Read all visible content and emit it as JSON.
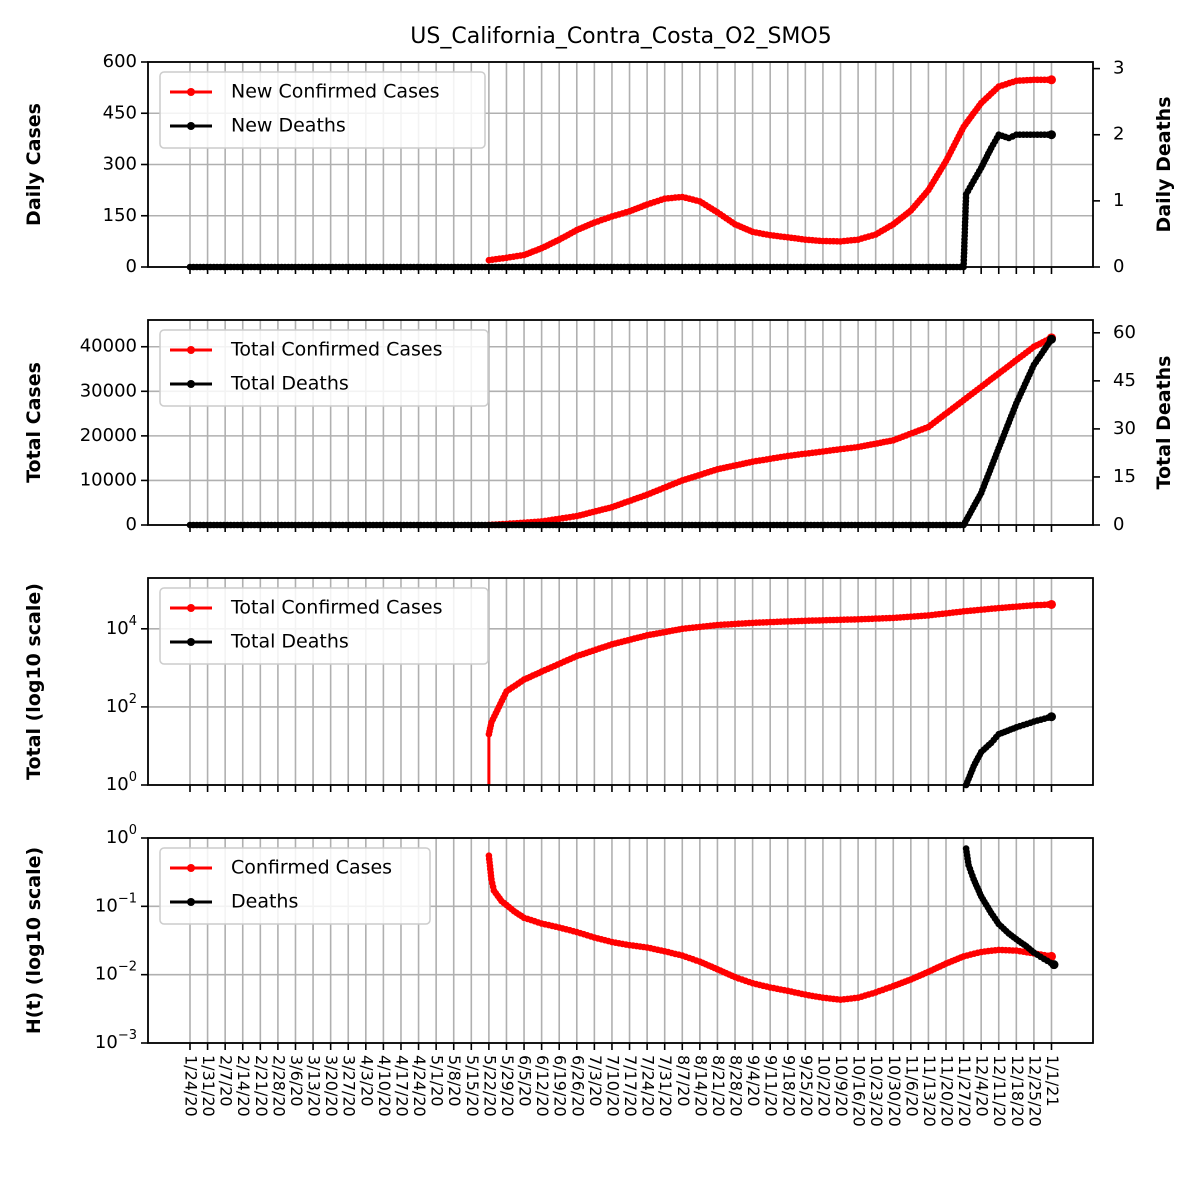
{
  "colors": {
    "confirmed": "#ff0000",
    "deaths": "#000000",
    "grid": "#b0b0b0"
  },
  "chart_data": [
    {
      "type": "line",
      "title": "US_California_Contra_Costa_O2_SMO5",
      "ylabel": "Daily Cases",
      "y2label": "Daily Deaths",
      "ylim": [
        0,
        600
      ],
      "y2lim": [
        0,
        3.1
      ],
      "yticks": [
        "0",
        "150",
        "300",
        "450",
        "600"
      ],
      "y2ticks": [
        "0",
        "1",
        "2",
        "3"
      ],
      "legend": {
        "placement": "upper-left",
        "entries": [
          "New Confirmed Cases",
          "New Deaths"
        ]
      },
      "series": [
        {
          "name": "New Confirmed Cases",
          "axis": "left",
          "color": "#ff0000",
          "points": [
            [
              "5/22/20",
              20
            ],
            [
              "5/29/20",
              27
            ],
            [
              "6/5/20",
              35
            ],
            [
              "6/12/20",
              55
            ],
            [
              "6/19/20",
              80
            ],
            [
              "6/26/20",
              108
            ],
            [
              "7/3/20",
              130
            ],
            [
              "7/10/20",
              148
            ],
            [
              "7/17/20",
              163
            ],
            [
              "7/24/20",
              183
            ],
            [
              "7/31/20",
              200
            ],
            [
              "8/7/20",
              205
            ],
            [
              "8/14/20",
              192
            ],
            [
              "8/21/20",
              160
            ],
            [
              "8/28/20",
              125
            ],
            [
              "9/4/20",
              103
            ],
            [
              "9/11/20",
              93
            ],
            [
              "9/18/20",
              87
            ],
            [
              "9/25/20",
              80
            ],
            [
              "10/2/20",
              76
            ],
            [
              "10/9/20",
              75
            ],
            [
              "10/16/20",
              80
            ],
            [
              "10/23/20",
              95
            ],
            [
              "10/30/20",
              125
            ],
            [
              "11/6/20",
              165
            ],
            [
              "11/13/20",
              225
            ],
            [
              "11/20/20",
              310
            ],
            [
              "11/27/20",
              410
            ],
            [
              "12/4/20",
              480
            ],
            [
              "12/11/20",
              528
            ],
            [
              "12/18/20",
              545
            ],
            [
              "12/25/20",
              548
            ],
            [
              "1/1/21",
              548
            ]
          ]
        },
        {
          "name": "New Deaths",
          "axis": "right",
          "color": "#000000",
          "points": [
            [
              "1/24/20",
              0
            ],
            [
              "11/27/20",
              0
            ],
            [
              "11/28/20",
              1.1
            ],
            [
              "12/1/20",
              1.3
            ],
            [
              "12/4/20",
              1.5
            ],
            [
              "12/8/20",
              1.8
            ],
            [
              "12/11/20",
              2.0
            ],
            [
              "12/15/20",
              1.95
            ],
            [
              "12/18/20",
              2.0
            ],
            [
              "1/1/21",
              2.0
            ]
          ]
        }
      ]
    },
    {
      "type": "line",
      "ylabel": "Total Cases",
      "y2label": "Total Deaths",
      "ylim": [
        0,
        46000
      ],
      "y2lim": [
        0,
        64
      ],
      "yticks": [
        "0",
        "10000",
        "20000",
        "30000",
        "40000"
      ],
      "y2ticks": [
        "0",
        "15",
        "30",
        "45",
        "60"
      ],
      "legend": {
        "placement": "upper-left",
        "entries": [
          "Total Confirmed Cases",
          "Total Deaths"
        ]
      },
      "series": [
        {
          "name": "Total Confirmed Cases",
          "axis": "left",
          "color": "#ff0000",
          "points": [
            [
              "5/22/20",
              20
            ],
            [
              "5/29/20",
              250
            ],
            [
              "6/12/20",
              800
            ],
            [
              "6/26/20",
              2000
            ],
            [
              "7/10/20",
              4000
            ],
            [
              "7/24/20",
              6800
            ],
            [
              "8/7/20",
              10000
            ],
            [
              "8/21/20",
              12500
            ],
            [
              "9/4/20",
              14200
            ],
            [
              "9/18/20",
              15500
            ],
            [
              "10/2/20",
              16500
            ],
            [
              "10/16/20",
              17500
            ],
            [
              "10/30/20",
              19000
            ],
            [
              "11/13/20",
              22000
            ],
            [
              "11/27/20",
              28000
            ],
            [
              "12/11/20",
              34000
            ],
            [
              "12/25/20",
              40000
            ],
            [
              "1/1/21",
              42000
            ]
          ]
        },
        {
          "name": "Total Deaths",
          "axis": "right",
          "color": "#000000",
          "points": [
            [
              "1/24/20",
              0
            ],
            [
              "11/27/20",
              0
            ],
            [
              "12/4/20",
              10
            ],
            [
              "12/11/20",
              24
            ],
            [
              "12/18/20",
              38
            ],
            [
              "12/25/20",
              50
            ],
            [
              "1/1/21",
              58
            ]
          ]
        }
      ]
    },
    {
      "type": "line",
      "ylabel": "Total (log10 scale)",
      "yscale": "log",
      "ylim": [
        1,
        200000
      ],
      "yticks": [
        "10^0",
        "10^2",
        "10^4"
      ],
      "legend": {
        "placement": "upper-left",
        "entries": [
          "Total Confirmed Cases",
          "Total Deaths"
        ]
      },
      "series": [
        {
          "name": "Total Confirmed Cases",
          "color": "#ff0000",
          "points": [
            [
              "5/22/20",
              20
            ],
            [
              "5/23/20",
              40
            ],
            [
              "5/29/20",
              250
            ],
            [
              "6/5/20",
              500
            ],
            [
              "6/12/20",
              800
            ],
            [
              "6/26/20",
              2000
            ],
            [
              "7/10/20",
              4000
            ],
            [
              "7/24/20",
              6800
            ],
            [
              "8/7/20",
              10000
            ],
            [
              "8/21/20",
              12500
            ],
            [
              "9/4/20",
              14200
            ],
            [
              "9/18/20",
              15500
            ],
            [
              "10/2/20",
              16500
            ],
            [
              "10/16/20",
              17500
            ],
            [
              "10/30/20",
              19000
            ],
            [
              "11/13/20",
              22000
            ],
            [
              "11/27/20",
              28000
            ],
            [
              "12/11/20",
              34000
            ],
            [
              "12/25/20",
              40000
            ],
            [
              "1/1/21",
              42000
            ]
          ]
        },
        {
          "name": "Total Deaths",
          "color": "#000000",
          "points": [
            [
              "11/28/20",
              1
            ],
            [
              "12/1/20",
              3
            ],
            [
              "12/4/20",
              7
            ],
            [
              "12/8/20",
              12
            ],
            [
              "12/11/20",
              20
            ],
            [
              "12/18/20",
              30
            ],
            [
              "12/25/20",
              42
            ],
            [
              "1/1/21",
              56
            ]
          ]
        }
      ]
    },
    {
      "type": "line",
      "ylabel": "H(t) (log10 scale)",
      "yscale": "log",
      "ylim": [
        0.001,
        1
      ],
      "yticks": [
        "10^-3",
        "10^-2",
        "10^-1",
        "10^0"
      ],
      "legend": {
        "placement": "upper-left",
        "entries": [
          "Confirmed Cases",
          "Deaths"
        ]
      },
      "series": [
        {
          "name": "Confirmed Cases",
          "color": "#ff0000",
          "points": [
            [
              "5/22/20",
              0.55
            ],
            [
              "5/23/20",
              0.25
            ],
            [
              "5/24/20",
              0.17
            ],
            [
              "5/27/20",
              0.12
            ],
            [
              "6/1/20",
              0.085
            ],
            [
              "6/5/20",
              0.068
            ],
            [
              "6/12/20",
              0.056
            ],
            [
              "6/19/20",
              0.049
            ],
            [
              "6/26/20",
              0.042
            ],
            [
              "7/3/20",
              0.035
            ],
            [
              "7/10/20",
              0.03
            ],
            [
              "7/17/20",
              0.027
            ],
            [
              "7/24/20",
              0.025
            ],
            [
              "7/31/20",
              0.022
            ],
            [
              "8/7/20",
              0.019
            ],
            [
              "8/14/20",
              0.0155
            ],
            [
              "8/21/20",
              0.012
            ],
            [
              "8/28/20",
              0.0092
            ],
            [
              "9/4/20",
              0.0075
            ],
            [
              "9/11/20",
              0.0065
            ],
            [
              "9/18/20",
              0.0058
            ],
            [
              "9/25/20",
              0.0051
            ],
            [
              "10/2/20",
              0.0046
            ],
            [
              "10/9/20",
              0.0043
            ],
            [
              "10/16/20",
              0.0046
            ],
            [
              "10/23/20",
              0.0055
            ],
            [
              "10/30/20",
              0.0068
            ],
            [
              "11/6/20",
              0.0085
            ],
            [
              "11/13/20",
              0.011
            ],
            [
              "11/20/20",
              0.0145
            ],
            [
              "11/27/20",
              0.0185
            ],
            [
              "12/4/20",
              0.0215
            ],
            [
              "12/11/20",
              0.023
            ],
            [
              "12/18/20",
              0.0225
            ],
            [
              "12/25/20",
              0.0205
            ],
            [
              "1/1/21",
              0.0185
            ]
          ]
        },
        {
          "name": "Deaths",
          "color": "#000000",
          "points": [
            [
              "11/28/20",
              0.7
            ],
            [
              "11/29/20",
              0.4
            ],
            [
              "12/1/20",
              0.25
            ],
            [
              "12/4/20",
              0.14
            ],
            [
              "12/8/20",
              0.08
            ],
            [
              "12/11/20",
              0.055
            ],
            [
              "12/15/20",
              0.04
            ],
            [
              "12/18/20",
              0.033
            ],
            [
              "12/22/20",
              0.026
            ],
            [
              "12/25/20",
              0.021
            ],
            [
              "12/29/20",
              0.017
            ],
            [
              "1/2/21",
              0.014
            ]
          ]
        }
      ]
    }
  ],
  "x_axis": {
    "start": "1/24/20",
    "end": "1/2/21",
    "ticks": [
      "1/24/20",
      "1/31/20",
      "2/7/20",
      "2/14/20",
      "2/21/20",
      "2/28/20",
      "3/6/20",
      "3/13/20",
      "3/20/20",
      "3/27/20",
      "4/3/20",
      "4/10/20",
      "4/17/20",
      "4/24/20",
      "5/1/20",
      "5/8/20",
      "5/15/20",
      "5/22/20",
      "5/29/20",
      "6/5/20",
      "6/12/20",
      "6/19/20",
      "6/26/20",
      "7/3/20",
      "7/10/20",
      "7/17/20",
      "7/24/20",
      "7/31/20",
      "8/7/20",
      "8/14/20",
      "8/21/20",
      "8/28/20",
      "9/4/20",
      "9/11/20",
      "9/18/20",
      "9/25/20",
      "10/2/20",
      "10/9/20",
      "10/16/20",
      "10/23/20",
      "10/30/20",
      "11/6/20",
      "11/13/20",
      "11/20/20",
      "11/27/20",
      "12/4/20",
      "12/11/20",
      "12/18/20",
      "12/25/20",
      "1/1/21"
    ]
  }
}
